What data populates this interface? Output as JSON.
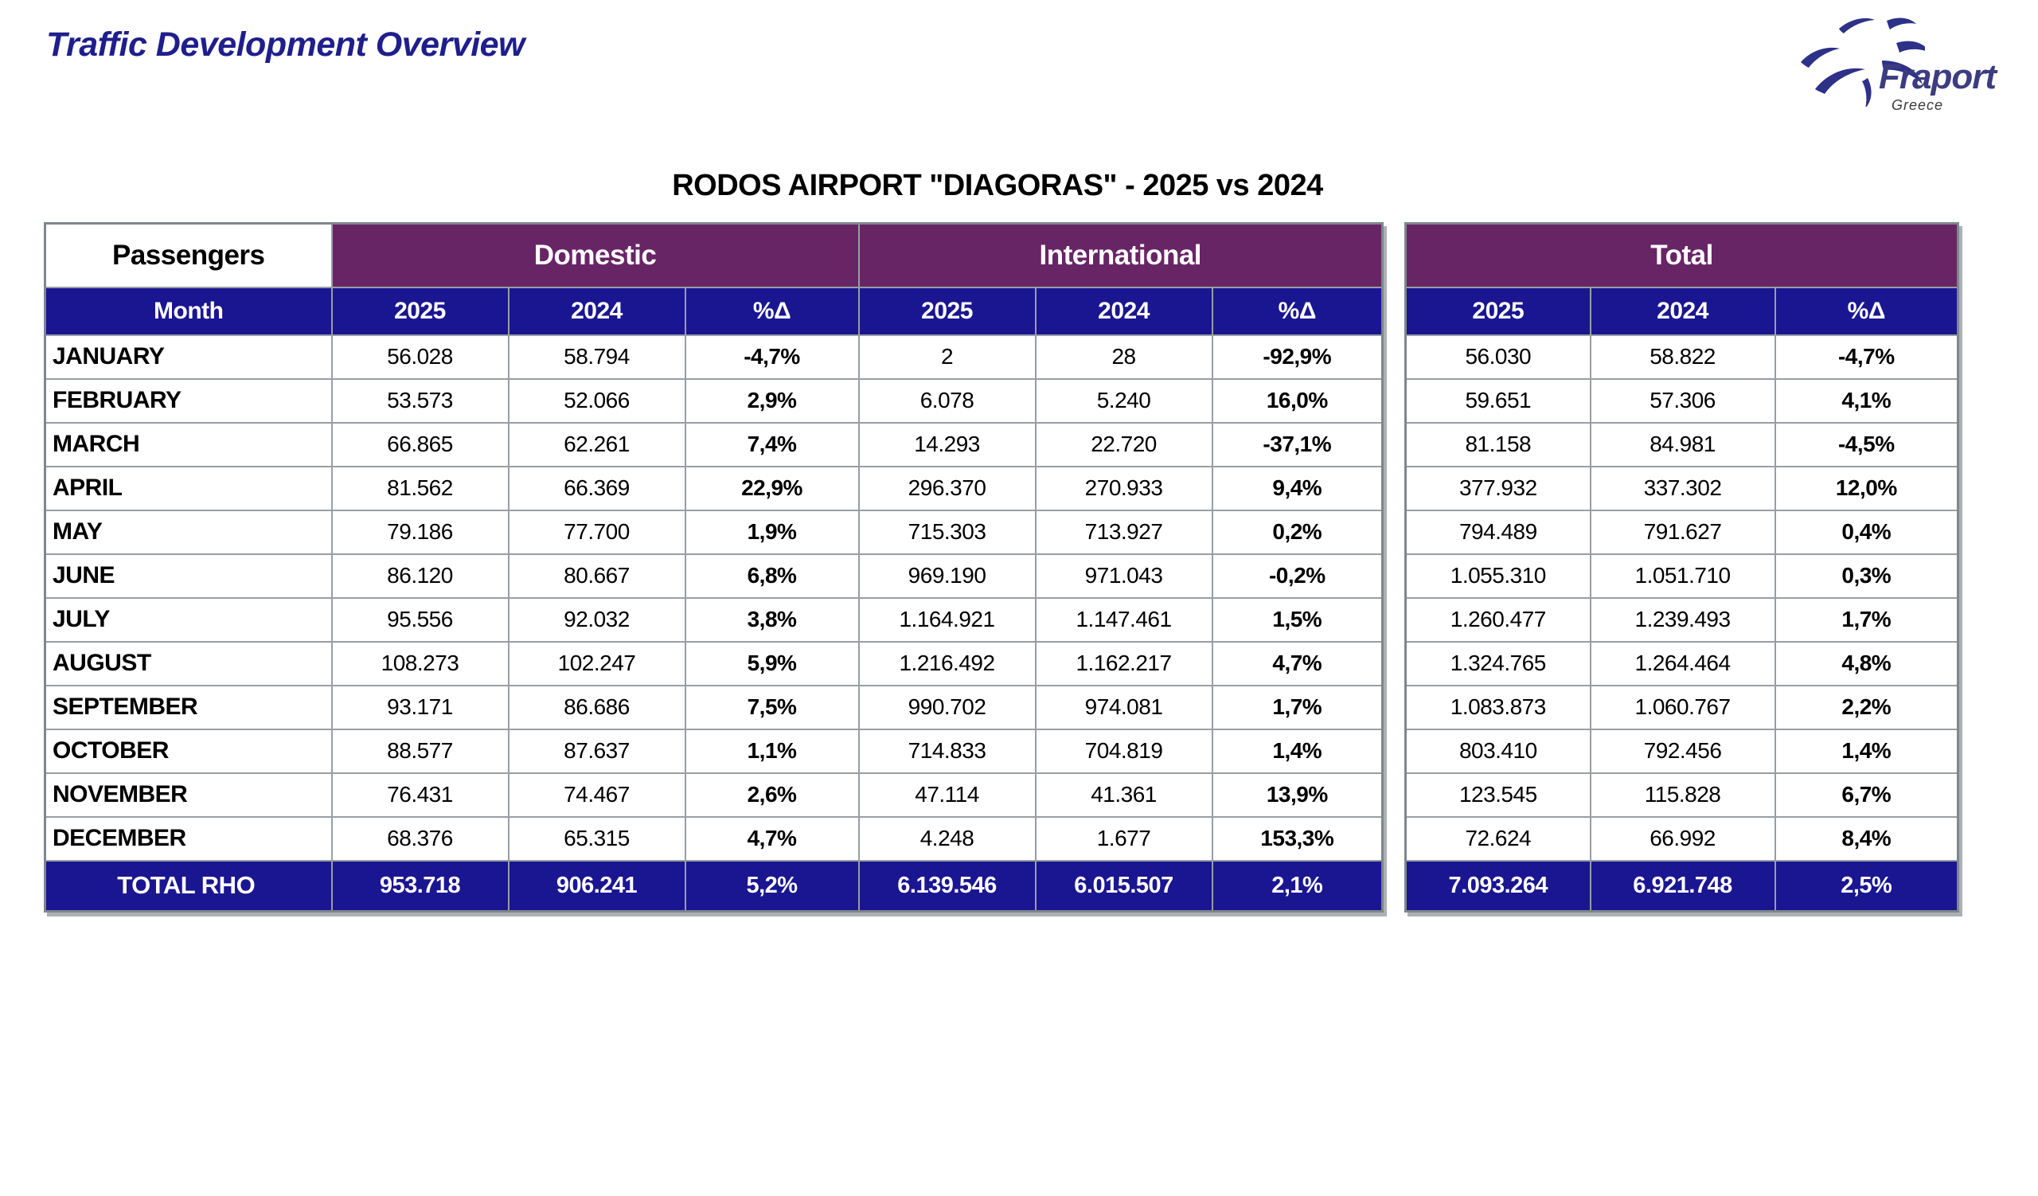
{
  "page": {
    "title": "Traffic Development Overview"
  },
  "logo": {
    "brand": "Fraport",
    "region": "Greece"
  },
  "colors": {
    "header_purple": "#682566",
    "header_navy": "#1A1691",
    "title_blue": "#1E1E8C",
    "grid_gray": "#989EA3",
    "logo_blue": "#2E3188"
  },
  "table": {
    "title": "RODOS AIRPORT \"DIAGORAS\" - 2025 vs 2024",
    "corner_label": "Passengers",
    "month_col_label": "Month",
    "group_headers": [
      "Domestic",
      "International",
      "Total"
    ],
    "sub_headers": [
      "2025",
      "2024",
      "%Δ"
    ],
    "months": [
      {
        "month": "JANUARY",
        "domestic": [
          "56.028",
          "58.794",
          "-4,7%"
        ],
        "international": [
          "2",
          "28",
          "-92,9%"
        ],
        "total": [
          "56.030",
          "58.822",
          "-4,7%"
        ]
      },
      {
        "month": "FEBRUARY",
        "domestic": [
          "53.573",
          "52.066",
          "2,9%"
        ],
        "international": [
          "6.078",
          "5.240",
          "16,0%"
        ],
        "total": [
          "59.651",
          "57.306",
          "4,1%"
        ]
      },
      {
        "month": "MARCH",
        "domestic": [
          "66.865",
          "62.261",
          "7,4%"
        ],
        "international": [
          "14.293",
          "22.720",
          "-37,1%"
        ],
        "total": [
          "81.158",
          "84.981",
          "-4,5%"
        ]
      },
      {
        "month": "APRIL",
        "domestic": [
          "81.562",
          "66.369",
          "22,9%"
        ],
        "international": [
          "296.370",
          "270.933",
          "9,4%"
        ],
        "total": [
          "377.932",
          "337.302",
          "12,0%"
        ]
      },
      {
        "month": "MAY",
        "domestic": [
          "79.186",
          "77.700",
          "1,9%"
        ],
        "international": [
          "715.303",
          "713.927",
          "0,2%"
        ],
        "total": [
          "794.489",
          "791.627",
          "0,4%"
        ]
      },
      {
        "month": "JUNE",
        "domestic": [
          "86.120",
          "80.667",
          "6,8%"
        ],
        "international": [
          "969.190",
          "971.043",
          "-0,2%"
        ],
        "total": [
          "1.055.310",
          "1.051.710",
          "0,3%"
        ]
      },
      {
        "month": "JULY",
        "domestic": [
          "95.556",
          "92.032",
          "3,8%"
        ],
        "international": [
          "1.164.921",
          "1.147.461",
          "1,5%"
        ],
        "total": [
          "1.260.477",
          "1.239.493",
          "1,7%"
        ]
      },
      {
        "month": "AUGUST",
        "domestic": [
          "108.273",
          "102.247",
          "5,9%"
        ],
        "international": [
          "1.216.492",
          "1.162.217",
          "4,7%"
        ],
        "total": [
          "1.324.765",
          "1.264.464",
          "4,8%"
        ]
      },
      {
        "month": "SEPTEMBER",
        "domestic": [
          "93.171",
          "86.686",
          "7,5%"
        ],
        "international": [
          "990.702",
          "974.081",
          "1,7%"
        ],
        "total": [
          "1.083.873",
          "1.060.767",
          "2,2%"
        ]
      },
      {
        "month": "OCTOBER",
        "domestic": [
          "88.577",
          "87.637",
          "1,1%"
        ],
        "international": [
          "714.833",
          "704.819",
          "1,4%"
        ],
        "total": [
          "803.410",
          "792.456",
          "1,4%"
        ]
      },
      {
        "month": "NOVEMBER",
        "domestic": [
          "76.431",
          "74.467",
          "2,6%"
        ],
        "international": [
          "47.114",
          "41.361",
          "13,9%"
        ],
        "total": [
          "123.545",
          "115.828",
          "6,7%"
        ]
      },
      {
        "month": "DECEMBER",
        "domestic": [
          "68.376",
          "65.315",
          "4,7%"
        ],
        "international": [
          "4.248",
          "1.677",
          "153,3%"
        ],
        "total": [
          "72.624",
          "66.992",
          "8,4%"
        ]
      }
    ],
    "total_row": {
      "label": "TOTAL RHO",
      "domestic": [
        "953.718",
        "906.241",
        "5,2%"
      ],
      "international": [
        "6.139.546",
        "6.015.507",
        "2,1%"
      ],
      "total": [
        "7.093.264",
        "6.921.748",
        "2,5%"
      ]
    }
  }
}
